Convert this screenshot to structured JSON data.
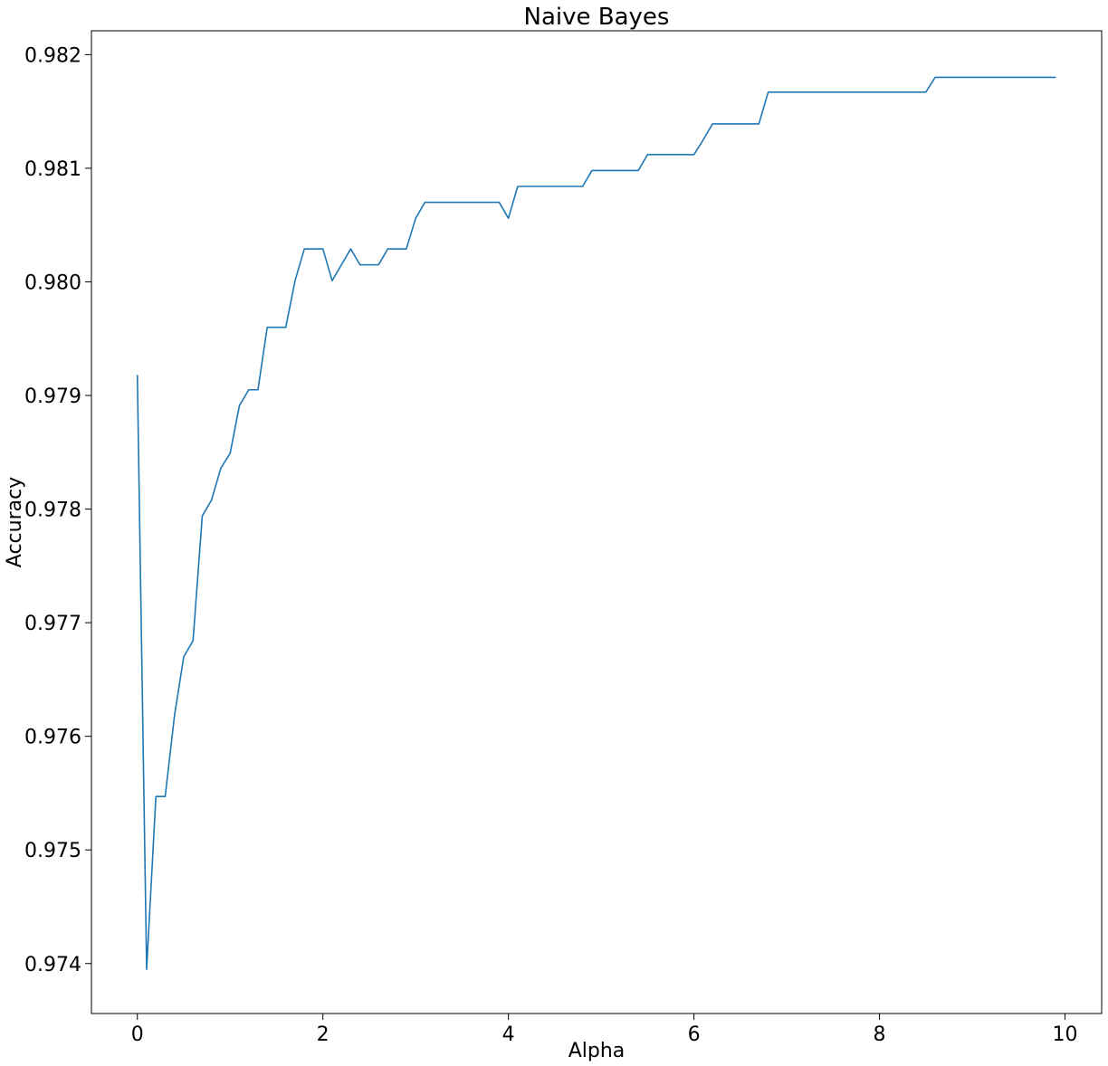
{
  "chart_data": {
    "type": "line",
    "title": "Naive Bayes",
    "xlabel": "Alpha",
    "ylabel": "Accuracy",
    "xlim": [
      -0.495,
      10.395
    ],
    "ylim": [
      0.97356,
      0.98221
    ],
    "x_ticks": [
      0,
      2,
      4,
      6,
      8,
      10
    ],
    "x_tick_labels": [
      "0",
      "2",
      "4",
      "6",
      "8",
      "10"
    ],
    "y_ticks": [
      0.974,
      0.975,
      0.976,
      0.977,
      0.978,
      0.979,
      0.98,
      0.981,
      0.982
    ],
    "y_tick_labels": [
      "0.974",
      "0.975",
      "0.976",
      "0.977",
      "0.978",
      "0.979",
      "0.980",
      "0.981",
      "0.982"
    ],
    "grid": false,
    "series": [
      {
        "color": "#1f77b4",
        "x": [
          0.0,
          0.1,
          0.2,
          0.3,
          0.4,
          0.5,
          0.6,
          0.7,
          0.8,
          0.9,
          1.0,
          1.1,
          1.2,
          1.3,
          1.4,
          1.5,
          1.6,
          1.7,
          1.8,
          1.9,
          2.0,
          2.1,
          2.2,
          2.3,
          2.4,
          2.5,
          2.6,
          2.7,
          2.8,
          2.9,
          3.0,
          3.1,
          3.2,
          3.3,
          3.4,
          3.5,
          3.6,
          3.7,
          3.8,
          3.9,
          4.0,
          4.1,
          4.2,
          4.3,
          4.4,
          4.5,
          4.6,
          4.7,
          4.8,
          4.9,
          5.0,
          5.1,
          5.2,
          5.3,
          5.4,
          5.5,
          5.6,
          5.7,
          5.8,
          5.9,
          6.0,
          6.1,
          6.2,
          6.3,
          6.4,
          6.5,
          6.6,
          6.7,
          6.8,
          6.9,
          7.0,
          7.1,
          7.2,
          7.3,
          7.4,
          7.5,
          7.6,
          7.7,
          7.8,
          7.9,
          8.0,
          8.1,
          8.2,
          8.3,
          8.4,
          8.5,
          8.6,
          8.7,
          8.8,
          8.9,
          9.0,
          9.1,
          9.2,
          9.3,
          9.4,
          9.5,
          9.6,
          9.7,
          9.8,
          9.9
        ],
        "y": [
          0.97918,
          0.97395,
          0.97547,
          0.97547,
          0.97618,
          0.9767,
          0.97684,
          0.97794,
          0.97808,
          0.97836,
          0.97849,
          0.97891,
          0.97905,
          0.97905,
          0.9796,
          0.9796,
          0.9796,
          0.98001,
          0.98029,
          0.98029,
          0.98029,
          0.98001,
          0.98015,
          0.98029,
          0.98015,
          0.98015,
          0.98015,
          0.98029,
          0.98029,
          0.98029,
          0.98056,
          0.9807,
          0.9807,
          0.9807,
          0.9807,
          0.9807,
          0.9807,
          0.9807,
          0.9807,
          0.9807,
          0.98056,
          0.98084,
          0.98084,
          0.98084,
          0.98084,
          0.98084,
          0.98084,
          0.98084,
          0.98084,
          0.98098,
          0.98098,
          0.98098,
          0.98098,
          0.98098,
          0.98098,
          0.98112,
          0.98112,
          0.98112,
          0.98112,
          0.98112,
          0.98112,
          0.98125,
          0.98139,
          0.98139,
          0.98139,
          0.98139,
          0.98139,
          0.98139,
          0.98167,
          0.98167,
          0.98167,
          0.98167,
          0.98167,
          0.98167,
          0.98167,
          0.98167,
          0.98167,
          0.98167,
          0.98167,
          0.98167,
          0.98167,
          0.98167,
          0.98167,
          0.98167,
          0.98167,
          0.98167,
          0.9818,
          0.9818,
          0.9818,
          0.9818,
          0.9818,
          0.9818,
          0.9818,
          0.9818,
          0.9818,
          0.9818,
          0.9818,
          0.9818,
          0.9818,
          0.9818
        ]
      }
    ]
  }
}
